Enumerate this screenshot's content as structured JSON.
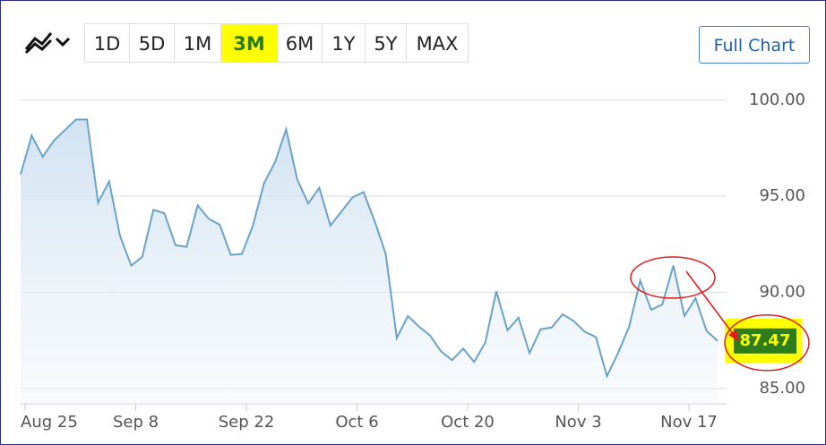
{
  "range_buttons": [
    "1D",
    "5D",
    "1M",
    "3M",
    "6M",
    "1Y",
    "5Y",
    "MAX"
  ],
  "full_chart_button": "Full Chart",
  "chart_data": {
    "type": "line",
    "categories": [
      "Aug 25",
      null,
      null,
      null,
      null,
      null,
      null,
      null,
      null,
      null,
      "Sep 8",
      null,
      null,
      null,
      null,
      null,
      null,
      null,
      null,
      null,
      "Sep 22",
      null,
      null,
      null,
      null,
      null,
      null,
      null,
      null,
      null,
      "Oct 6",
      null,
      null,
      null,
      null,
      null,
      null,
      null,
      null,
      null,
      "Oct 20",
      null,
      null,
      null,
      null,
      null,
      null,
      null,
      null,
      null,
      "Nov 3",
      null,
      null,
      null,
      null,
      null,
      null,
      null,
      null,
      null,
      "Nov 17",
      null,
      null,
      null
    ],
    "values": [
      96.13,
      98.16,
      97.05,
      97.88,
      98.44,
      98.99,
      98.99,
      94.66,
      95.77,
      92.91,
      91.39,
      91.85,
      94.29,
      94.11,
      92.45,
      92.36,
      94.52,
      93.83,
      93.51,
      91.95,
      91.99,
      93.47,
      95.67,
      96.78,
      98.48,
      95.86,
      94.62,
      95.44,
      93.47,
      94.2,
      94.94,
      95.21,
      93.7,
      91.99,
      87.62,
      88.77,
      88.22,
      87.76,
      86.93,
      86.47,
      87.07,
      86.38,
      87.39,
      90.06,
      88.03,
      88.68,
      86.84,
      88.08,
      88.17,
      88.86,
      88.5,
      87.94,
      87.67,
      85.64,
      86.84,
      88.22,
      90.61,
      89.09,
      89.37,
      91.39,
      88.77,
      89.69,
      87.99,
      87.47
    ],
    "color": "#6aa3c8",
    "ylim": [
      84.2,
      101.2
    ],
    "yticks": [
      {
        "value": 85,
        "label": "85.00"
      },
      {
        "value": 90,
        "label": "90.00"
      },
      {
        "value": 95,
        "label": "95.00"
      },
      {
        "value": 100,
        "label": "100.00"
      }
    ],
    "grid": true,
    "current_price": 87.47
  }
}
